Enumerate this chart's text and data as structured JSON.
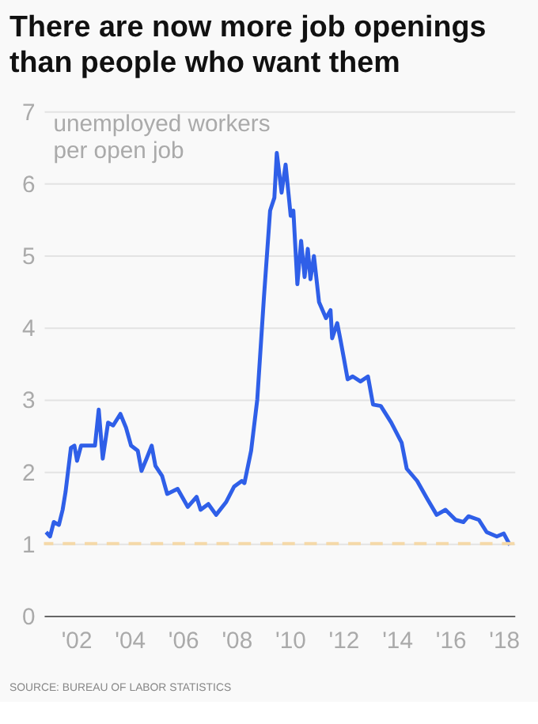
{
  "chart_data": {
    "type": "line",
    "title": "There are now more job openings than people who want them",
    "ylabel": "unemployed workers per open job",
    "annotations": [
      "SOURCE: BUREAU OF LABOR STATISTICS"
    ],
    "xlim": [
      2000.8,
      2018.4
    ],
    "xticks": [
      {
        "value": 2002,
        "label": "'02"
      },
      {
        "value": 2004,
        "label": "'04"
      },
      {
        "value": 2006,
        "label": "'06"
      },
      {
        "value": 2008,
        "label": "'08"
      },
      {
        "value": 2010,
        "label": "'10"
      },
      {
        "value": 2012,
        "label": "'12"
      },
      {
        "value": 2014,
        "label": "'14"
      },
      {
        "value": 2016,
        "label": "'16"
      },
      {
        "value": 2018,
        "label": "'18"
      }
    ],
    "ylim": [
      0,
      7
    ],
    "yticks": [
      0,
      1,
      2,
      3,
      4,
      5,
      6,
      7
    ],
    "grid": "y",
    "marker": "none",
    "line_style": "solid",
    "ref_lines": [
      {
        "axis": "y",
        "value": 1,
        "color": "#f5d9a8",
        "line_style": "dashed"
      }
    ],
    "series": [
      {
        "color": "#2f5fe8",
        "x": [
          2000.88,
          2001.03,
          2001.17,
          2001.36,
          2001.5,
          2001.61,
          2001.81,
          2001.94,
          2002.04,
          2002.19,
          2002.42,
          2002.71,
          2002.85,
          2003.0,
          2003.2,
          2003.39,
          2003.66,
          2003.87,
          2004.06,
          2004.31,
          2004.45,
          2004.64,
          2004.83,
          2004.97,
          2005.22,
          2005.41,
          2005.8,
          2006.18,
          2006.51,
          2006.66,
          2006.95,
          2007.24,
          2007.62,
          2007.91,
          2008.2,
          2008.3,
          2008.55,
          2008.78,
          2009.03,
          2009.26,
          2009.42,
          2009.51,
          2009.69,
          2009.84,
          2010.03,
          2010.13,
          2010.28,
          2010.42,
          2010.55,
          2010.67,
          2010.77,
          2010.9,
          2011.09,
          2011.35,
          2011.52,
          2011.58,
          2011.77,
          2011.9,
          2012.02,
          2012.16,
          2012.35,
          2012.64,
          2012.92,
          2013.11,
          2013.4,
          2013.79,
          2014.18,
          2014.37,
          2014.76,
          2015.14,
          2015.49,
          2015.82,
          2016.2,
          2016.49,
          2016.68,
          2017.07,
          2017.36,
          2017.74,
          2018.0,
          2018.23
        ],
        "values": [
          1.16,
          1.1,
          1.3,
          1.26,
          1.47,
          1.72,
          2.33,
          2.36,
          2.15,
          2.36,
          2.36,
          2.36,
          2.86,
          2.18,
          2.68,
          2.64,
          2.8,
          2.61,
          2.36,
          2.29,
          2.01,
          2.18,
          2.36,
          2.08,
          1.94,
          1.69,
          1.76,
          1.51,
          1.65,
          1.47,
          1.55,
          1.4,
          1.58,
          1.79,
          1.87,
          1.84,
          2.29,
          3.0,
          4.42,
          5.62,
          5.8,
          6.42,
          5.87,
          6.26,
          5.55,
          5.62,
          4.6,
          5.2,
          4.7,
          5.09,
          4.67,
          4.99,
          4.35,
          4.13,
          4.24,
          3.85,
          4.06,
          3.81,
          3.57,
          3.28,
          3.32,
          3.25,
          3.32,
          2.93,
          2.91,
          2.68,
          2.4,
          2.04,
          1.87,
          1.62,
          1.4,
          1.47,
          1.33,
          1.3,
          1.38,
          1.33,
          1.16,
          1.1,
          1.14,
          0.98
        ]
      }
    ]
  }
}
